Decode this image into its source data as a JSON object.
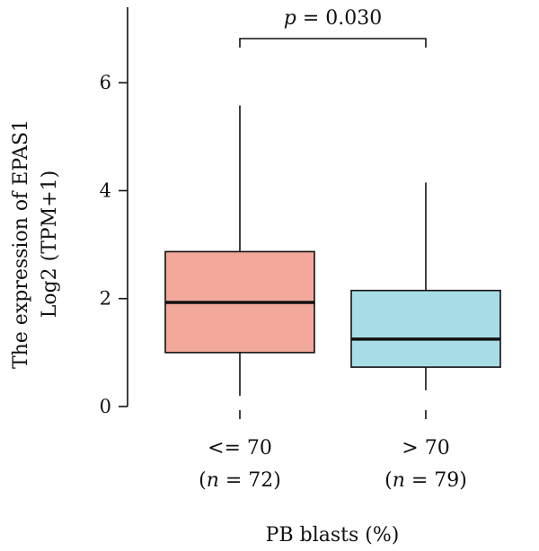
{
  "chart_data": {
    "type": "boxplot",
    "ylabel_line1": "The expression of EPAS1",
    "ylabel_line2": "Log2 (TPM+1)",
    "xlabel": "PB blasts (%)",
    "ylim": [
      0,
      7.4
    ],
    "yticks": [
      0,
      2,
      4,
      6
    ],
    "annotation": {
      "prefix": "p",
      "text": " = 0.030"
    },
    "groups": [
      {
        "category": "<= 70",
        "n_label": [
          "(",
          "n",
          " = 72)"
        ],
        "min": 0.2,
        "q1": 1.0,
        "median": 1.93,
        "q3": 2.87,
        "max": 5.58,
        "color": "#f2a99b"
      },
      {
        "category": "> 70",
        "n_label": [
          "(",
          "n",
          " = 79)"
        ],
        "min": 0.3,
        "q1": 0.73,
        "median": 1.25,
        "q3": 2.15,
        "max": 4.15,
        "color": "#a8dde8"
      }
    ]
  }
}
